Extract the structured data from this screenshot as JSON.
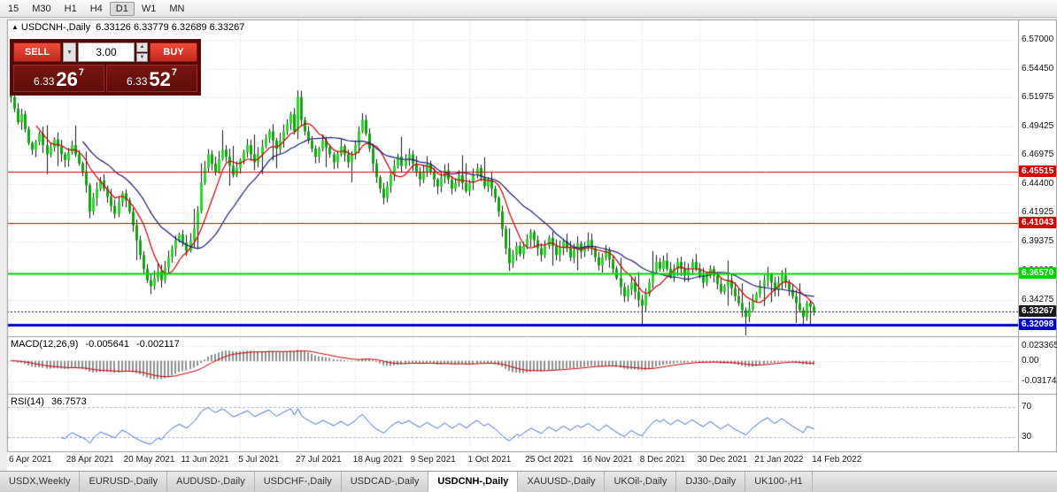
{
  "toolbar": {
    "timeframes": [
      {
        "label": "15",
        "active": false
      },
      {
        "label": "M30",
        "active": false
      },
      {
        "label": "H1",
        "active": false
      },
      {
        "label": "H4",
        "active": false
      },
      {
        "label": "D1",
        "active": true
      },
      {
        "label": "W1",
        "active": false
      },
      {
        "label": "MN",
        "active": false
      }
    ]
  },
  "chart": {
    "toggle_icon": "▲",
    "symbol_title": "USDCNH-,Daily",
    "ohlc_line": "6.33126 6.33779 6.32689 6.33267"
  },
  "trade_panel": {
    "sell_label": "SELL",
    "buy_label": "BUY",
    "volume": "3.00",
    "dropdown_icon": "▼",
    "spinner_up_icon": "▲",
    "spinner_down_icon": "▼",
    "sell_price": {
      "whole": "6.33",
      "pips": "26",
      "pip_sup": "7"
    },
    "buy_price": {
      "whole": "6.33",
      "pips": "52",
      "pip_sup": "7"
    }
  },
  "indicators": {
    "macd": {
      "label": "MACD(12,26,9)",
      "value_main": "-0.005641",
      "value_signal": "-0.002117",
      "axis_labels": [
        {
          "text": "0.023365",
          "value": 0.023365
        },
        {
          "text": "0.00",
          "value": 0
        },
        {
          "text": "-0.031745",
          "value": -0.031745
        }
      ]
    },
    "rsi": {
      "label": "RSI(14)",
      "value": "36.7573",
      "axis_labels": [
        {
          "text": "70",
          "value": 70
        },
        {
          "text": "30",
          "value": 30
        }
      ]
    }
  },
  "price_axis": {
    "ticks": [
      "6.57000",
      "6.54450",
      "6.51975",
      "6.49425",
      "6.46975",
      "6.44400",
      "6.41925",
      "6.39375",
      "6.36825",
      "6.34275"
    ]
  },
  "tabs": [
    {
      "label": "USDX,Weekly",
      "active": false
    },
    {
      "label": "EURUSD-,Daily",
      "active": false
    },
    {
      "label": "AUDUSD-,Daily",
      "active": false
    },
    {
      "label": "USDCHF-,Daily",
      "active": false
    },
    {
      "label": "USDCAD-,Daily",
      "active": false
    },
    {
      "label": "USDCNH-,Daily",
      "active": true
    },
    {
      "label": "XAUUSD-,Daily",
      "active": false
    },
    {
      "label": "UKOil-,Daily",
      "active": false
    },
    {
      "label": "DJ30-,Daily",
      "active": false
    },
    {
      "label": "UK100-,H1",
      "active": false
    }
  ],
  "colors": {
    "bull": "#2ed32e",
    "bear": "#0fa30f",
    "wick": "#161616",
    "ma_fast": "#cc0000",
    "ma_slow": "#1b1b7a",
    "macd_hist": "#8f8f8f",
    "macd_signal": "#cc0000",
    "rsi_line": "#3b6fd4",
    "grid": "#dadada",
    "rsi_level": "#b3b3cf",
    "level_red": "#d40000",
    "level_green": "#00d400",
    "level_blue": "#0000cc",
    "current_price_badge": "#1a1a1a"
  },
  "chart_data": {
    "type": "candlestick",
    "symbol": "USDCNH-",
    "period": "Daily",
    "ohlc_current": {
      "open": 6.33126,
      "high": 6.33779,
      "low": 6.32689,
      "close": 6.33267
    },
    "y_range": [
      6.313,
      6.588
    ],
    "x_tick_interval": 16,
    "x_tick_labels": [
      "6 Apr 2021",
      "28 Apr 2021",
      "20 May 2021",
      "11 Jun 2021",
      "5 Jul 2021",
      "27 Jul 2021",
      "18 Aug 2021",
      "9 Sep 2021",
      "1 Oct 2021",
      "25 Oct 2021",
      "16 Nov 2021",
      "8 Dec 2021",
      "30 Dec 2021",
      "21 Jan 2022",
      "14 Feb 2022"
    ],
    "first_open": 6.532,
    "closes": [
      6.52,
      6.51,
      6.498,
      6.505,
      6.492,
      6.48,
      6.474,
      6.481,
      6.488,
      6.478,
      6.47,
      6.476,
      6.483,
      6.477,
      6.47,
      6.465,
      6.472,
      6.478,
      6.47,
      6.462,
      6.455,
      6.443,
      6.42,
      6.432,
      6.44,
      6.447,
      6.44,
      6.433,
      6.425,
      6.418,
      6.428,
      6.436,
      6.43,
      6.42,
      6.408,
      6.395,
      6.382,
      6.37,
      6.36,
      6.355,
      6.362,
      6.368,
      6.36,
      6.371,
      6.38,
      6.388,
      6.395,
      6.4,
      6.393,
      6.386,
      6.395,
      6.405,
      6.42,
      6.445,
      6.458,
      6.47,
      6.462,
      6.455,
      6.466,
      6.474,
      6.468,
      6.46,
      6.452,
      6.458,
      6.465,
      6.472,
      6.478,
      6.47,
      6.463,
      6.47,
      6.477,
      6.484,
      6.49,
      6.482,
      6.475,
      6.482,
      6.49,
      6.497,
      6.505,
      6.49,
      6.52,
      6.5,
      6.49,
      6.482,
      6.475,
      6.468,
      6.475,
      6.482,
      6.476,
      6.47,
      6.463,
      6.47,
      6.477,
      6.47,
      6.463,
      6.47,
      6.478,
      6.49,
      6.5,
      6.488,
      6.475,
      6.462,
      6.45,
      6.44,
      6.432,
      6.442,
      6.452,
      6.46,
      6.468,
      6.46,
      6.465,
      6.47,
      6.462,
      6.455,
      6.448,
      6.455,
      6.462,
      6.455,
      6.448,
      6.442,
      6.45,
      6.456,
      6.448,
      6.44,
      6.445,
      6.452,
      6.445,
      6.438,
      6.445,
      6.452,
      6.458,
      6.45,
      6.442,
      6.448,
      6.44,
      6.432,
      6.42,
      6.405,
      6.388,
      6.375,
      6.382,
      6.39,
      6.383,
      6.39,
      6.396,
      6.402,
      6.395,
      6.388,
      6.382,
      6.39,
      6.397,
      6.39,
      6.382,
      6.388,
      6.394,
      6.388,
      6.38,
      6.386,
      6.392,
      6.385,
      6.39,
      6.395,
      6.388,
      6.38,
      6.373,
      6.38,
      6.386,
      6.378,
      6.37,
      6.362,
      6.354,
      6.346,
      6.352,
      6.358,
      6.35,
      6.343,
      6.338,
      6.348,
      6.358,
      6.368,
      6.376,
      6.37,
      6.377,
      6.37,
      6.363,
      6.37,
      6.376,
      6.37,
      6.364,
      6.37,
      6.376,
      6.37,
      6.364,
      6.358,
      6.364,
      6.37,
      6.364,
      6.357,
      6.35,
      6.355,
      6.36,
      6.353,
      6.346,
      6.34,
      6.334,
      6.328,
      6.335,
      6.342,
      6.348,
      6.355,
      6.36,
      6.365,
      6.358,
      6.352,
      6.358,
      6.364,
      6.358,
      6.352,
      6.346,
      6.34,
      6.334,
      6.328,
      6.34,
      6.337,
      6.33267
    ],
    "levels": [
      {
        "price": 6.45515,
        "label": "6.45515",
        "color": "#d40000",
        "width": 1,
        "style": "solid",
        "role": "resistance"
      },
      {
        "price": 6.41043,
        "label": "6.41043",
        "color": "#d40000",
        "width": 1,
        "style": "solid",
        "role": "resistance"
      },
      {
        "price": 6.3657,
        "label": "6.36570",
        "color": "#00d400",
        "width": 2,
        "style": "solid",
        "role": "support"
      },
      {
        "price": 6.33267,
        "label": "6.33267",
        "color": "#1a1a1a",
        "width": 1,
        "style": "dotted",
        "role": "current"
      },
      {
        "price": 6.32098,
        "label": "6.32098",
        "color": "#0000cc",
        "width": 3,
        "style": "solid",
        "role": "support"
      }
    ],
    "macd": {
      "fast": 12,
      "slow": 26,
      "signal": 9,
      "last_main": -0.005641,
      "last_signal": -0.002117
    },
    "rsi": {
      "period": 14,
      "last": 36.7573,
      "levels": [
        70,
        30
      ]
    }
  }
}
